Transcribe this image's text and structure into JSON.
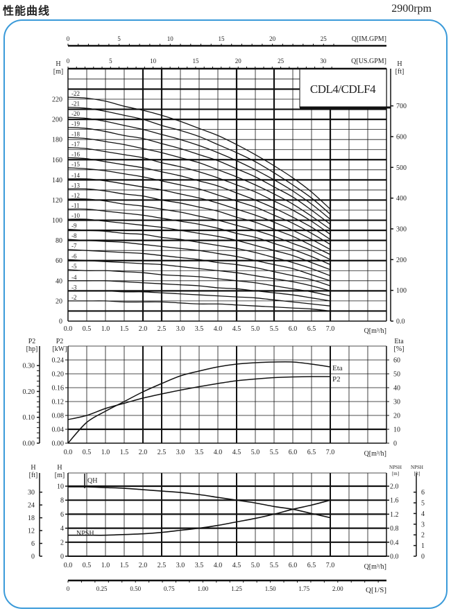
{
  "header": {
    "title": "性能曲线",
    "speed": "2900rpm"
  },
  "colors": {
    "frame": "#3a9ad9",
    "ink": "#111111"
  },
  "chart_data": [
    {
      "type": "line",
      "title": "CDL4/CDLF4",
      "xlabel": "Q[m³/h]",
      "ylabel": [
        "H",
        "[m]"
      ],
      "y2label": [
        "H",
        "[ft]"
      ],
      "xlim": [
        0,
        8.5
      ],
      "ylim": [
        0,
        250
      ],
      "grid": true,
      "x": [
        0,
        0.5,
        1,
        1.5,
        2,
        2.5,
        3,
        3.5,
        4,
        4.5,
        5,
        5.5,
        6,
        6.5,
        7
      ],
      "xticks": [
        "0.0",
        "0.5",
        "1.0",
        "1.5",
        "2.0",
        "2.5",
        "3.0",
        "3.5",
        "4.0",
        "4.5",
        "5.0",
        "5.5",
        "6.0",
        "6.5",
        "7.0"
      ],
      "yticks": [
        "0",
        "20",
        "40",
        "60",
        "80",
        "100",
        "120",
        "140",
        "160",
        "180",
        "200",
        "220"
      ],
      "y2ticks": [
        "0.0",
        "100",
        "200",
        "300",
        "400",
        "500",
        "600",
        "700"
      ],
      "top_axes": [
        {
          "label": "Q[US.GPM]",
          "ticks": [
            "0",
            "5",
            "10",
            "15",
            "20",
            "25",
            "30"
          ]
        },
        {
          "label": "Q[IM.GPM]",
          "ticks": [
            "0",
            "5",
            "10",
            "15",
            "20",
            "25"
          ]
        }
      ],
      "series": [
        {
          "name": "-2",
          "values": [
            20,
            20,
            20,
            19,
            19,
            19,
            18,
            17,
            17,
            16,
            15,
            14,
            13,
            12,
            10
          ]
        },
        {
          "name": "-3",
          "values": [
            30,
            30,
            30,
            29,
            29,
            28,
            27,
            26,
            25,
            24,
            23,
            21,
            19,
            17,
            15
          ]
        },
        {
          "name": "-4",
          "values": [
            40,
            40,
            40,
            39,
            38,
            37,
            36,
            35,
            33,
            32,
            30,
            28,
            26,
            23,
            20
          ]
        },
        {
          "name": "-5",
          "values": [
            51,
            50,
            50,
            49,
            48,
            46,
            45,
            44,
            42,
            40,
            38,
            35,
            32,
            29,
            25
          ]
        },
        {
          "name": "-6",
          "values": [
            61,
            60,
            59,
            58,
            57,
            56,
            54,
            52,
            50,
            48,
            45,
            42,
            39,
            35,
            30
          ]
        },
        {
          "name": "-7",
          "values": [
            71,
            70,
            69,
            68,
            67,
            65,
            63,
            61,
            58,
            56,
            53,
            49,
            45,
            41,
            35
          ]
        },
        {
          "name": "-8",
          "values": [
            81,
            80,
            79,
            78,
            76,
            74,
            72,
            70,
            67,
            64,
            60,
            56,
            52,
            46,
            40
          ]
        },
        {
          "name": "-9",
          "values": [
            91,
            90,
            89,
            87,
            86,
            83,
            81,
            78,
            75,
            72,
            68,
            63,
            58,
            52,
            45
          ]
        },
        {
          "name": "-10",
          "values": [
            101,
            101,
            99,
            97,
            95,
            93,
            90,
            87,
            84,
            80,
            75,
            70,
            65,
            58,
            51
          ]
        },
        {
          "name": "-11",
          "values": [
            111,
            111,
            109,
            107,
            105,
            102,
            99,
            96,
            92,
            87,
            83,
            77,
            71,
            64,
            56
          ]
        },
        {
          "name": "-12",
          "values": [
            121,
            121,
            119,
            116,
            114,
            111,
            108,
            104,
            100,
            95,
            90,
            84,
            77,
            70,
            61
          ]
        },
        {
          "name": "-13",
          "values": [
            131,
            131,
            129,
            126,
            124,
            120,
            117,
            113,
            109,
            103,
            98,
            91,
            84,
            75,
            66
          ]
        },
        {
          "name": "-14",
          "values": [
            141,
            141,
            139,
            136,
            133,
            130,
            126,
            122,
            117,
            111,
            105,
            98,
            90,
            81,
            71
          ]
        },
        {
          "name": "-15",
          "values": [
            152,
            151,
            149,
            146,
            143,
            139,
            135,
            131,
            125,
            119,
            113,
            105,
            97,
            87,
            76
          ]
        },
        {
          "name": "-16",
          "values": [
            162,
            161,
            158,
            155,
            152,
            148,
            144,
            139,
            134,
            127,
            120,
            112,
            103,
            93,
            81
          ]
        },
        {
          "name": "-17",
          "values": [
            172,
            171,
            168,
            165,
            162,
            157,
            153,
            148,
            142,
            135,
            128,
            119,
            110,
            99,
            86
          ]
        },
        {
          "name": "-18",
          "values": [
            182,
            181,
            178,
            175,
            171,
            167,
            162,
            157,
            150,
            143,
            135,
            126,
            116,
            104,
            91
          ]
        },
        {
          "name": "-19",
          "values": [
            192,
            191,
            188,
            184,
            181,
            176,
            171,
            165,
            159,
            151,
            143,
            133,
            123,
            110,
            96
          ]
        },
        {
          "name": "-20",
          "values": [
            202,
            201,
            198,
            194,
            190,
            185,
            180,
            174,
            167,
            159,
            150,
            140,
            129,
            116,
            101
          ]
        },
        {
          "name": "-21",
          "values": [
            212,
            211,
            208,
            204,
            200,
            194,
            189,
            183,
            175,
            167,
            158,
            147,
            135,
            122,
            106
          ]
        },
        {
          "name": "-22",
          "values": [
            222,
            221,
            218,
            213,
            209,
            204,
            198,
            191,
            184,
            175,
            165,
            154,
            142,
            128,
            111
          ]
        }
      ]
    },
    {
      "type": "line",
      "xlabel": "Q[m³/h]",
      "ylabel": [
        "P2",
        "[kW]"
      ],
      "ylabel_hp": [
        "P2",
        "[hp]"
      ],
      "y2label": [
        "Eta",
        "[%]"
      ],
      "xlim": [
        0,
        8.5
      ],
      "ylim": [
        0,
        0.28
      ],
      "grid": true,
      "x": [
        0,
        0.5,
        1,
        1.5,
        2,
        2.5,
        3,
        3.5,
        4,
        4.5,
        5,
        5.5,
        6,
        6.5,
        7
      ],
      "xticks": [
        "0.0",
        "0.5",
        "1.0",
        "1.5",
        "2.0",
        "2.5",
        "3.0",
        "3.5",
        "4.0",
        "4.5",
        "5.0",
        "5.5",
        "6.0",
        "6.5",
        "7.0"
      ],
      "yticks": [
        "0.00",
        "0.04",
        "0.08",
        "0.12",
        "0.16",
        "0.20",
        "0.24"
      ],
      "hpticks": [
        "0.00",
        "0.10",
        "0.20",
        "0.30"
      ],
      "y2ticks": [
        "0",
        "10",
        "20",
        "30",
        "40",
        "50",
        "60"
      ],
      "series": [
        {
          "name": "Eta",
          "unit": "%",
          "values": [
            0,
            15,
            23,
            30,
            37,
            43,
            48.5,
            52,
            55,
            57,
            58,
            58.5,
            58.5,
            57,
            55
          ]
        },
        {
          "name": "P2",
          "unit": "kW",
          "values": [
            0.068,
            0.08,
            0.1,
            0.115,
            0.13,
            0.142,
            0.153,
            0.163,
            0.172,
            0.18,
            0.185,
            0.189,
            0.191,
            0.192,
            0.192
          ]
        }
      ]
    },
    {
      "type": "line",
      "xlabel": "Q[m³/h]",
      "x2label": "Q[1/S]",
      "ylabel": [
        "H",
        "[m]"
      ],
      "ylabel_ft": [
        "H",
        "[ft]"
      ],
      "y2label": [
        "NPSH",
        "[m]"
      ],
      "y3label": [
        "NPSH",
        "[ft]"
      ],
      "xlim": [
        0,
        8.5
      ],
      "ylim": [
        0,
        12
      ],
      "grid": true,
      "x": [
        0,
        0.5,
        1,
        1.5,
        2,
        2.5,
        3,
        3.5,
        4,
        4.5,
        5,
        5.5,
        6,
        6.5,
        7
      ],
      "xticks": [
        "0.0",
        "0.5",
        "1.0",
        "1.5",
        "2.0",
        "2.5",
        "3.0",
        "3.5",
        "4.0",
        "4.5",
        "5.0",
        "5.5",
        "6.0",
        "6.5",
        "7.0"
      ],
      "x2ticks": [
        "0",
        "0.25",
        "0.50",
        "0.75",
        "1.00",
        "1.25",
        "1.50",
        "1.75",
        "2.00"
      ],
      "yticks": [
        "0",
        "2",
        "4",
        "6",
        "8",
        "10"
      ],
      "ftticks": [
        "0",
        "6",
        "12",
        "18",
        "24",
        "30"
      ],
      "y2ticks": [
        "0.0",
        "0.4",
        "0.8",
        "1.2",
        "1.6",
        "2.0"
      ],
      "y3ticks": [
        "0",
        "1",
        "2",
        "3",
        "4",
        "5",
        "6"
      ],
      "series": [
        {
          "name": "QH",
          "unit": "m",
          "values": [
            9.9,
            9.9,
            9.8,
            9.7,
            9.5,
            9.3,
            9.1,
            8.8,
            8.4,
            8.0,
            7.6,
            7.1,
            6.7,
            6.1,
            5.5
          ]
        },
        {
          "name": "NPSH",
          "unit": "m",
          "values": [
            0.6,
            0.6,
            0.6,
            0.62,
            0.64,
            0.68,
            0.74,
            0.8,
            0.88,
            0.98,
            1.08,
            1.2,
            1.34,
            1.46,
            1.6
          ]
        }
      ]
    }
  ]
}
